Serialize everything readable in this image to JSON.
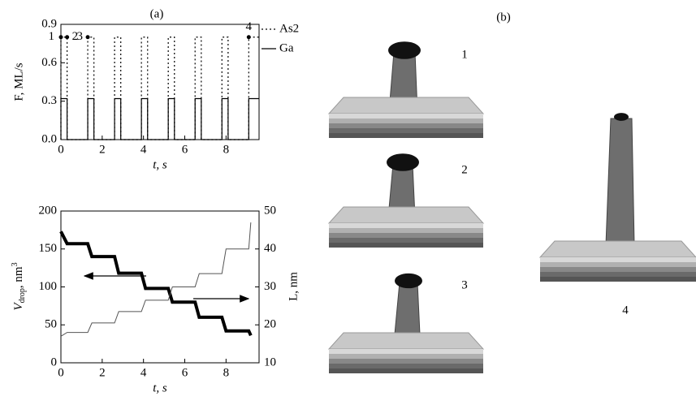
{
  "chart_data": [
    {
      "type": "line",
      "panel_label": "(a)",
      "xlabel": "t, s",
      "ylabel": "F, ML/s",
      "xlim": [
        0,
        9.6
      ],
      "xticks": [
        0,
        2,
        4,
        6,
        8
      ],
      "ylim": [
        0,
        0.9
      ],
      "yticks": [
        {
          "value": 0,
          "label": "0.0"
        },
        {
          "value": 0.3,
          "label": "0.3"
        },
        {
          "value": 0.6,
          "label": "0.6"
        },
        {
          "value": 0.9,
          "label": "0.9"
        }
      ],
      "series": [
        {
          "name": "As2",
          "color": "#000000",
          "dash": "dotted",
          "x": [
            0,
            0,
            0.3,
            0.3,
            1.3,
            1.3,
            1.6,
            1.6,
            2.6,
            2.6,
            2.9,
            2.9,
            3.9,
            3.9,
            4.2,
            4.2,
            5.2,
            5.2,
            5.5,
            5.5,
            6.5,
            6.5,
            6.8,
            6.8,
            7.8,
            7.8,
            8.1,
            8.1,
            9.1,
            9.1,
            9.6
          ],
          "values": [
            0,
            0.8,
            0.8,
            0,
            0,
            0.8,
            0.8,
            0,
            0,
            0.8,
            0.8,
            0,
            0,
            0.8,
            0.8,
            0,
            0,
            0.8,
            0.8,
            0,
            0,
            0.8,
            0.8,
            0,
            0,
            0.8,
            0.8,
            0,
            0,
            0.8,
            0.8
          ]
        },
        {
          "name": "Ga",
          "color": "#000000",
          "dash": "solid",
          "x": [
            0,
            0,
            0.3,
            0.3,
            1.3,
            1.3,
            1.6,
            1.6,
            2.6,
            2.6,
            2.9,
            2.9,
            3.9,
            3.9,
            4.2,
            4.2,
            5.2,
            5.2,
            5.5,
            5.5,
            6.5,
            6.5,
            6.8,
            6.8,
            7.8,
            7.8,
            8.1,
            8.1,
            9.1,
            9.1,
            9.6
          ],
          "values": [
            0,
            0.32,
            0.32,
            0,
            0,
            0.32,
            0.32,
            0,
            0,
            0.32,
            0.32,
            0,
            0,
            0.32,
            0.32,
            0,
            0,
            0.32,
            0.32,
            0,
            0,
            0.32,
            0.32,
            0,
            0,
            0.32,
            0.32,
            0,
            0,
            0.32,
            0.32
          ]
        }
      ],
      "points": {
        "x": [
          0,
          0.3,
          1.3,
          9.1
        ],
        "values": [
          0.8,
          0.8,
          0.8,
          0.8
        ],
        "labels": [
          "1",
          "2",
          "3",
          "4"
        ]
      }
    },
    {
      "type": "line",
      "xlabel": "t, s",
      "ylabel": {
        "main": "V",
        "sub": "drop",
        "unit": ", nm",
        "sup": "3"
      },
      "y2label": "L, nm",
      "xlim": [
        0,
        9.6
      ],
      "xticks": [
        0,
        2,
        4,
        6,
        8
      ],
      "ylim": [
        0,
        200
      ],
      "yticks": [
        0,
        50,
        100,
        150,
        200
      ],
      "y2lim": [
        10,
        50
      ],
      "y2ticks": [
        10,
        20,
        30,
        40,
        50
      ],
      "series": [
        {
          "color": "#000000",
          "width": 4,
          "x": [
            0,
            0.3,
            1.3,
            1.5,
            2.6,
            2.8,
            3.9,
            4.1,
            5.2,
            5.4,
            6.5,
            6.7,
            7.8,
            8.0,
            9.1,
            9.2
          ],
          "values": [
            173,
            157,
            157,
            140,
            140,
            118,
            118,
            98,
            98,
            80,
            80,
            60,
            60,
            42,
            42,
            36
          ]
        },
        {
          "color": "#555555",
          "width": 1,
          "axis": "y2",
          "x": [
            0,
            0.3,
            1.3,
            1.5,
            2.6,
            2.8,
            3.9,
            4.1,
            5.2,
            5.4,
            6.5,
            6.7,
            7.8,
            8.0,
            9.1,
            9.2
          ],
          "values": [
            17,
            18,
            18,
            20.5,
            20.5,
            23.5,
            23.5,
            26.5,
            26.5,
            30,
            30,
            33.5,
            33.5,
            40,
            40,
            47
          ]
        }
      ]
    }
  ],
  "panel_b": {
    "label": "(b)",
    "images": [
      "1",
      "2",
      "3",
      "4"
    ]
  }
}
